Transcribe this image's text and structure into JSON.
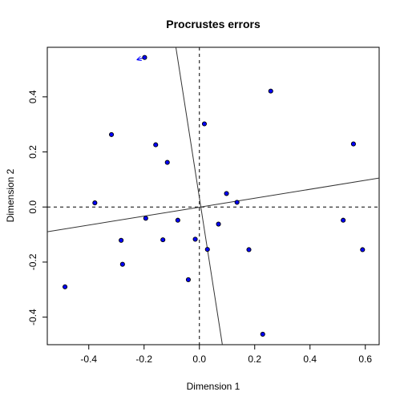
{
  "chart_data": {
    "type": "scatter",
    "title": "Procrustes errors",
    "xlabel": "Dimension 1",
    "ylabel": "Dimension 2",
    "xlim": [
      -0.55,
      0.65
    ],
    "ylim": [
      -0.5,
      0.58
    ],
    "xticks": [
      -0.4,
      -0.2,
      0.0,
      0.2,
      0.4,
      0.6
    ],
    "xtick_labels": [
      "-0.4",
      "-0.2",
      "0.0",
      "0.2",
      "0.4",
      "0.6"
    ],
    "yticks": [
      -0.4,
      -0.2,
      0.0,
      0.2,
      0.4
    ],
    "ytick_labels": [
      "-0.4",
      "-0.2",
      "0.0",
      "0.2",
      "0.4"
    ],
    "grid": false,
    "reference_lines": {
      "x": 0,
      "y": 0,
      "style": "dashed"
    },
    "rotation_axes": [
      {
        "x1": -0.55,
        "y1": -0.09,
        "x2": 0.65,
        "y2": 0.105
      },
      {
        "x1": -0.085,
        "y1": 0.58,
        "x2": 0.083,
        "y2": -0.5
      }
    ],
    "point_color": "#0000ff",
    "arrow_color": "#0000ff",
    "points": [
      {
        "x": -0.198,
        "y": 0.543,
        "tx": -0.225,
        "ty": 0.535
      },
      {
        "x": 0.258,
        "y": 0.421,
        "tx": 0.258,
        "ty": 0.421
      },
      {
        "x": 0.018,
        "y": 0.302,
        "tx": 0.018,
        "ty": 0.302
      },
      {
        "x": -0.318,
        "y": 0.263,
        "tx": -0.318,
        "ty": 0.263
      },
      {
        "x": -0.158,
        "y": 0.226,
        "tx": -0.158,
        "ty": 0.226
      },
      {
        "x": 0.557,
        "y": 0.229,
        "tx": 0.557,
        "ty": 0.229
      },
      {
        "x": -0.116,
        "y": 0.162,
        "tx": -0.116,
        "ty": 0.162
      },
      {
        "x": -0.378,
        "y": 0.015,
        "tx": -0.378,
        "ty": 0.015
      },
      {
        "x": 0.098,
        "y": 0.049,
        "tx": 0.098,
        "ty": 0.049
      },
      {
        "x": 0.136,
        "y": 0.017,
        "tx": 0.136,
        "ty": 0.017
      },
      {
        "x": -0.194,
        "y": -0.041,
        "tx": -0.194,
        "ty": -0.041
      },
      {
        "x": -0.078,
        "y": -0.048,
        "tx": -0.078,
        "ty": -0.048
      },
      {
        "x": 0.069,
        "y": -0.062,
        "tx": 0.069,
        "ty": -0.062
      },
      {
        "x": 0.52,
        "y": -0.048,
        "tx": 0.52,
        "ty": -0.048
      },
      {
        "x": -0.283,
        "y": -0.121,
        "tx": -0.283,
        "ty": -0.121
      },
      {
        "x": -0.132,
        "y": -0.119,
        "tx": -0.132,
        "ty": -0.119
      },
      {
        "x": -0.015,
        "y": -0.117,
        "tx": -0.015,
        "ty": -0.117
      },
      {
        "x": 0.029,
        "y": -0.154,
        "tx": 0.029,
        "ty": -0.154
      },
      {
        "x": 0.179,
        "y": -0.155,
        "tx": 0.179,
        "ty": -0.155
      },
      {
        "x": 0.59,
        "y": -0.155,
        "tx": 0.59,
        "ty": -0.155
      },
      {
        "x": -0.278,
        "y": -0.208,
        "tx": -0.278,
        "ty": -0.208
      },
      {
        "x": -0.04,
        "y": -0.264,
        "tx": -0.04,
        "ty": -0.264
      },
      {
        "x": -0.486,
        "y": -0.29,
        "tx": -0.486,
        "ty": -0.29
      },
      {
        "x": 0.229,
        "y": -0.462,
        "tx": 0.229,
        "ty": -0.462
      }
    ]
  }
}
